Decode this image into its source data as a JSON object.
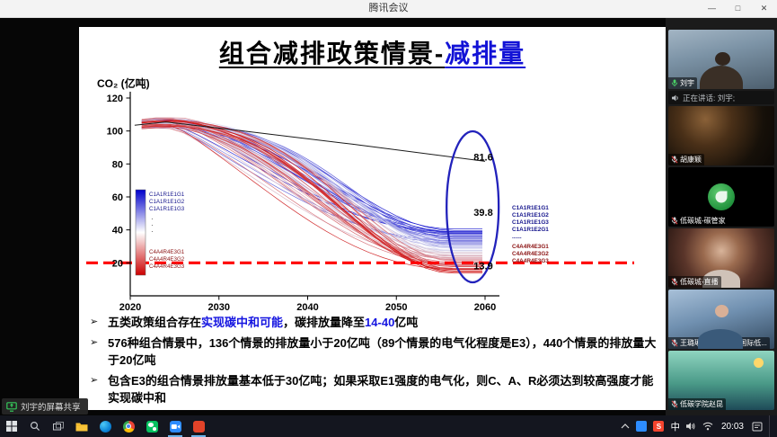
{
  "window": {
    "title": "腾讯会议",
    "controls": {
      "minimize": "—",
      "maximize": "□",
      "close": "✕"
    }
  },
  "slide": {
    "title_black": "组合减排政策情景-",
    "title_blue": "减排量",
    "bullet_marker": "➢",
    "bullets": [
      {
        "parts": [
          {
            "t": "五类政策组合存在",
            "c": "black"
          },
          {
            "t": "实现碳中和可能",
            "c": "blue"
          },
          {
            "t": "，碳排放量降至",
            "c": "black"
          },
          {
            "t": "14-40",
            "c": "blue"
          },
          {
            "t": "亿吨",
            "c": "black"
          }
        ]
      },
      {
        "parts": [
          {
            "t": "576种组合情景中，136个情景的排放量小于20亿吨（89个情景的电气化程度是E3），440个情景的排放量大于20亿吨",
            "c": "black"
          }
        ]
      },
      {
        "parts": [
          {
            "t": "包含E3的组合情景排放量基本低于30亿吨；如果采取E1强度的电气化，则C、A、R必须达到较高强度才能实现碳中和",
            "c": "black"
          }
        ]
      }
    ]
  },
  "chart_data": {
    "type": "line",
    "ylabel": "CO₂ (亿吨)",
    "xlim": [
      2020,
      2060
    ],
    "ylim": [
      0,
      120
    ],
    "xticks": [
      "2020",
      "2030",
      "2040",
      "2050",
      "2060"
    ],
    "yticks": [
      20,
      40,
      60,
      80,
      100,
      120
    ],
    "reference_line": {
      "points": [
        [
          2020.5,
          103.5
        ],
        [
          2024,
          105.5
        ],
        [
          2032,
          100.5
        ],
        [
          2045,
          92
        ],
        [
          2060,
          81.6
        ]
      ],
      "color": "#1a1a1a"
    },
    "ensemble": {
      "count": 64,
      "x_start": 2021.3,
      "x_end": 2060,
      "start_value_range": [
        100.5,
        106
      ],
      "end_value_range": [
        13.9,
        40
      ],
      "color_top": "#0000cc",
      "color_mid": "#ddddee",
      "color_bottom": "#cc0000"
    },
    "threshold_line": {
      "y": 20,
      "color": "#ff0000",
      "style": "dashed"
    },
    "highlight_ellipse": {
      "center_year": 2058.6,
      "center_value": 54,
      "color": "#2222bb"
    },
    "end_labels": [
      {
        "label": "81.6",
        "value": 81.6
      },
      {
        "label": "39.8",
        "value": 39.8
      },
      {
        "label": "13.9",
        "value": 13.9
      }
    ],
    "legend": {
      "top_labels": [
        "C1A1R1E1G1",
        "C1A1R1E1G2",
        "C1A1R1E1G3"
      ],
      "bottom_labels": [
        "C4A4R4E3G1",
        "C4A4R4E3G2",
        "C4A4R4E3G3"
      ]
    },
    "endpoint_groups": [
      {
        "color": "#14148c",
        "labels": [
          "C1A1R1E1G1",
          "C1A1R1E1G2",
          "C1A1R1E1G3",
          "C1A1R1E2G1",
          "......"
        ]
      },
      {
        "color": "#8c1414",
        "labels": [
          "C4A4R4E3G1",
          "C4A4R4E3G2",
          "C4A4R4E3G3"
        ]
      }
    ]
  },
  "participants": {
    "speaking_indicator": "正在讲话: 刘宇;",
    "tiles": [
      {
        "name": "刘宇",
        "style": "webcam",
        "mic": "on"
      },
      {
        "name": "胡康颖",
        "style": "dark-warm",
        "mic": "off"
      },
      {
        "name": "低碳城-碳管家",
        "style": "logo-green",
        "mic": "off"
      },
      {
        "name": "低碳城-直播",
        "style": "photo-warm",
        "mic": "off"
      },
      {
        "name": "王璐琳 山财大中国国际低...",
        "style": "photo-blue",
        "mic": "off"
      },
      {
        "name": "低碳学院赵昆",
        "style": "illustration",
        "mic": "off"
      }
    ]
  },
  "share_banner": {
    "text": "刘宇的屏幕共享"
  },
  "taskbar": {
    "tray": {
      "lang": "中",
      "sogou": "S",
      "time": "20:03"
    }
  }
}
